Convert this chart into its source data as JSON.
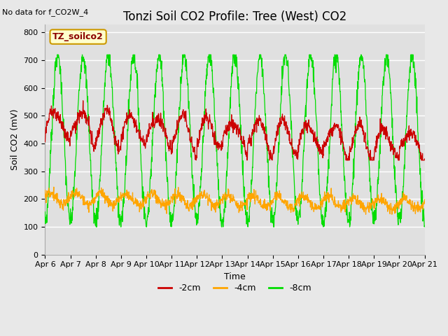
{
  "title": "Tonzi Soil CO2 Profile: Tree (West) CO2",
  "subtitle": "No data for f_CO2W_4",
  "xlabel": "Time",
  "ylabel": "Soil CO2 (mV)",
  "ylim": [
    0,
    830
  ],
  "yticks": [
    0,
    100,
    200,
    300,
    400,
    500,
    600,
    700,
    800
  ],
  "xtick_labels": [
    "Apr 6",
    "Apr 7",
    "Apr 8",
    "Apr 9",
    "Apr 10",
    "Apr 11",
    "Apr 12",
    "Apr 13",
    "Apr 14",
    "Apr 15",
    "Apr 16",
    "Apr 17",
    "Apr 18",
    "Apr 19",
    "Apr 20",
    "Apr 21"
  ],
  "legend_label": "TZ_soilco2",
  "series_labels": [
    "-2cm",
    "-4cm",
    "-8cm"
  ],
  "series_colors": [
    "#cc0000",
    "#ffa500",
    "#00dd00"
  ],
  "background_color": "#e8e8e8",
  "plot_bg_color": "#e0e0e0",
  "title_fontsize": 12,
  "axis_fontsize": 9,
  "tick_fontsize": 8,
  "legend_box_color": "#ffffcc",
  "legend_box_edge": "#cc9900",
  "n_days": 15,
  "points_per_day": 96
}
